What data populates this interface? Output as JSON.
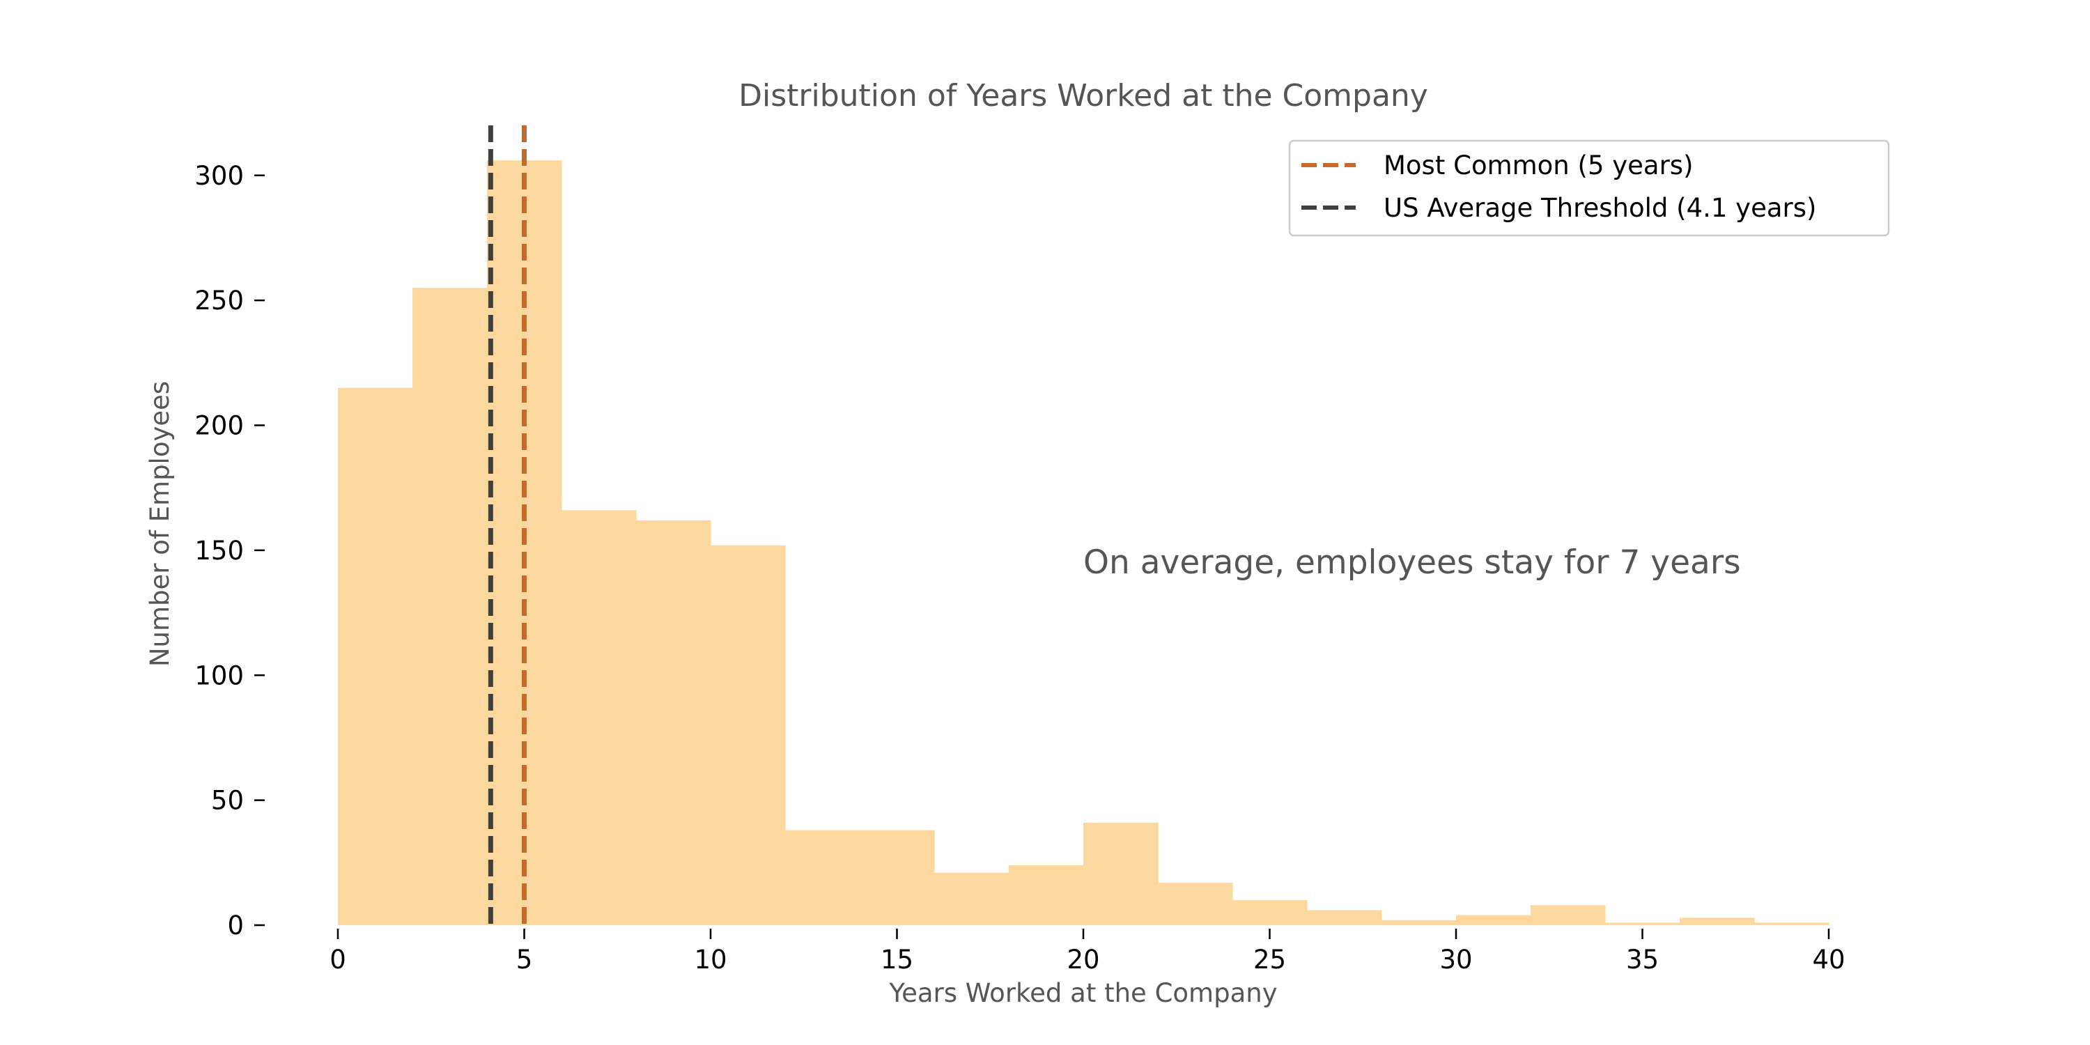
{
  "chart_data": {
    "type": "bar",
    "title": "Distribution of Years Worked at the Company",
    "xlabel": "Years Worked at the Company",
    "ylabel": "Number of Employees",
    "xlim": [
      0,
      40
    ],
    "ylim": [
      0,
      320
    ],
    "xticks": [
      0,
      5,
      10,
      15,
      20,
      25,
      30,
      35,
      40
    ],
    "yticks": [
      0,
      50,
      100,
      150,
      200,
      250,
      300
    ],
    "grid": false,
    "bin_edges": [
      0,
      2,
      4,
      6,
      8,
      10,
      12,
      14,
      16,
      18,
      20,
      22,
      24,
      26,
      28,
      30,
      32,
      34,
      36,
      38,
      40
    ],
    "values": [
      215,
      255,
      306,
      166,
      162,
      152,
      38,
      38,
      21,
      24,
      41,
      17,
      10,
      6,
      2,
      4,
      8,
      1,
      3,
      1
    ],
    "bar_color": "#FDD89E",
    "reference_lines": [
      {
        "label": "Most Common (5 years)",
        "x": 5,
        "color": "#C8682B"
      },
      {
        "label": "US Average Threshold (4.1 years)",
        "x": 4.1,
        "color": "#3F3F3F"
      }
    ],
    "legend_position": "top-right",
    "annotation": "On average, employees stay for 7 years"
  }
}
